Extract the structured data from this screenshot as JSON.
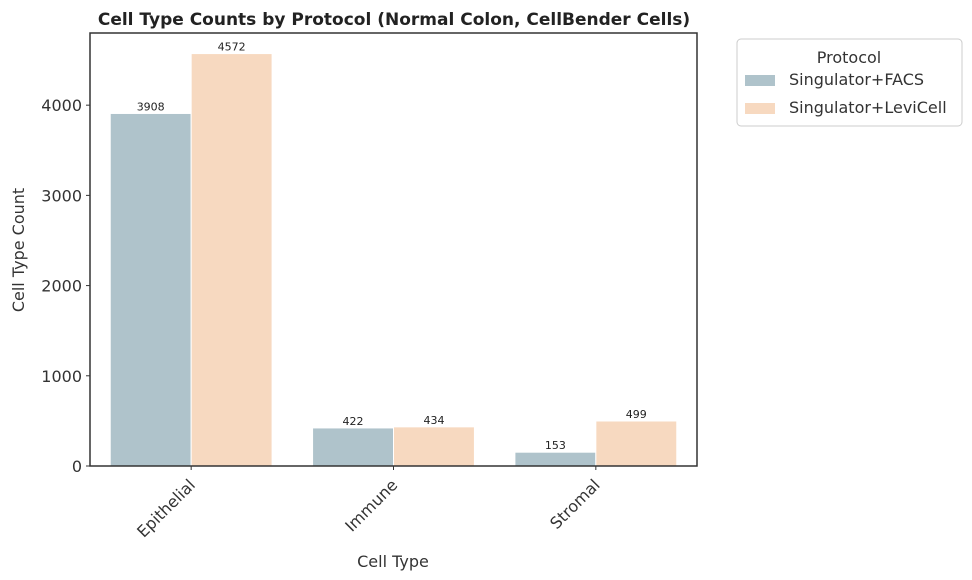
{
  "chart_data": {
    "type": "bar",
    "title": "Cell Type Counts by Protocol (Normal Colon, CellBender Cells)",
    "xlabel": "Cell Type",
    "ylabel": "Cell Type Count",
    "categories": [
      "Epithelial",
      "Immune",
      "Stromal"
    ],
    "series": [
      {
        "name": "Singulator+FACS",
        "color": "#afc3cb",
        "values": [
          3908,
          422,
          153
        ]
      },
      {
        "name": "Singulator+LeviCell",
        "color": "#f7d9c0",
        "values": [
          4572,
          434,
          499
        ]
      }
    ],
    "ylim": [
      0,
      4800
    ],
    "yticks": [
      0,
      1000,
      2000,
      3000,
      4000
    ],
    "grid": false,
    "legend": {
      "title": "Protocol",
      "placement": "outside-top-right"
    }
  }
}
